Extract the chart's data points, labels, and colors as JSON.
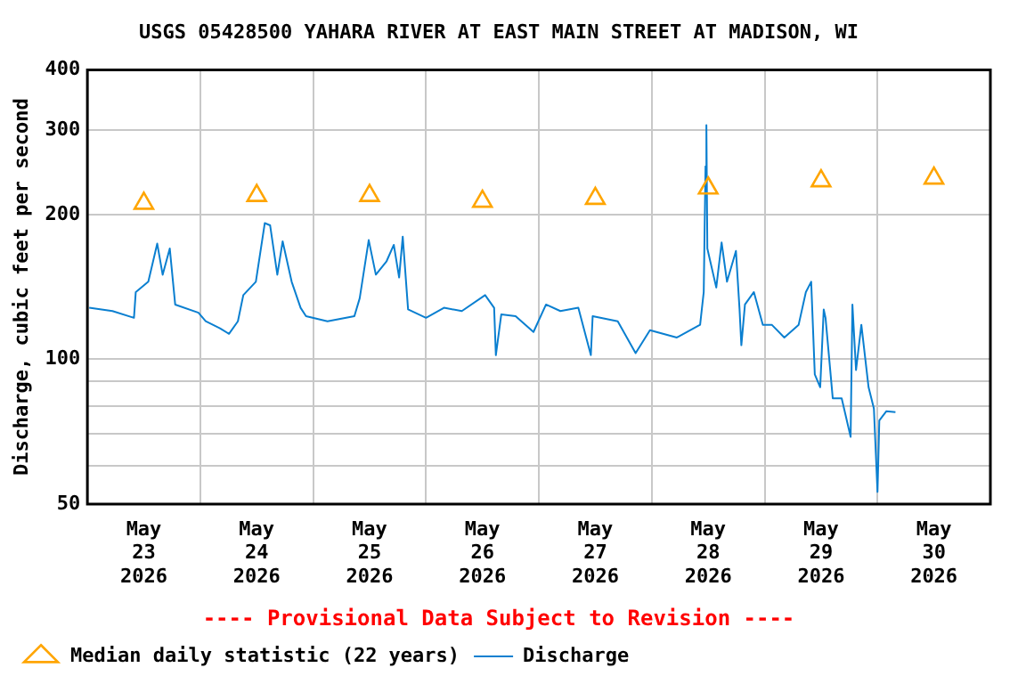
{
  "chart_data": {
    "type": "line",
    "title": "USGS 05428500 YAHARA RIVER AT EAST MAIN STREET AT MADISON, WI",
    "ylabel": "Discharge, cubic feet per second",
    "annotations": [
      "---- Provisional Data Subject to Revision ----"
    ],
    "log": "y",
    "grid": true,
    "legend": "bottom",
    "xlim": [
      "2026-05-23T00:00",
      "2026-05-31T00:00"
    ],
    "xticks": [
      {
        "value": "2026-05-23T00:00",
        "label": null
      },
      {
        "value": "2026-05-23T12:00",
        "label": "May 23 2026"
      },
      {
        "value": "2026-05-24T00:00",
        "label": null
      },
      {
        "value": "2026-05-24T12:00",
        "label": "May 24 2026"
      },
      {
        "value": "2026-05-25T00:00",
        "label": null
      },
      {
        "value": "2026-05-25T12:00",
        "label": "May 25 2026"
      },
      {
        "value": "2026-05-26T00:00",
        "label": null
      },
      {
        "value": "2026-05-26T12:00",
        "label": "May 26 2026"
      },
      {
        "value": "2026-05-27T00:00",
        "label": null
      },
      {
        "value": "2026-05-27T12:00",
        "label": "May 27 2026"
      },
      {
        "value": "2026-05-28T00:00",
        "label": null
      },
      {
        "value": "2026-05-28T12:00",
        "label": "May 28 2026"
      },
      {
        "value": "2026-05-29T00:00",
        "label": null
      },
      {
        "value": "2026-05-29T12:00",
        "label": "May 29 2026"
      },
      {
        "value": "2026-05-30T00:00",
        "label": null
      },
      {
        "value": "2026-05-30T12:00",
        "label": "May 30 2026"
      },
      {
        "value": "2026-05-31T00:00",
        "label": null
      }
    ],
    "ylim": [
      50,
      400
    ],
    "yticks": [
      50,
      {
        "value": 60,
        "label": null
      },
      {
        "value": 70,
        "label": null
      },
      {
        "value": 80,
        "label": null
      },
      {
        "value": 90,
        "label": null
      },
      100,
      200,
      300,
      400
    ],
    "series": [
      {
        "name": "Median daily statistic (22 years)",
        "type": "scatter",
        "marker": "triangle",
        "color": "#ffa500",
        "x": [
          "2026-05-23T12:00",
          "2026-05-24T12:00",
          "2026-05-25T12:00",
          "2026-05-26T12:00",
          "2026-05-27T12:00",
          "2026-05-28T12:00",
          "2026-05-29T12:00",
          "2026-05-30T12:00"
        ],
        "values": [
          211,
          219,
          219,
          213,
          216,
          227,
          235,
          238
        ]
      },
      {
        "name": "Discharge",
        "line_style": "solid",
        "color": "#0a7fd0",
        "x": [
          "2026-05-23T00:23",
          "2026-05-23T05:20",
          "2026-05-23T09:54",
          "2026-05-23T10:17",
          "2026-05-23T12:57",
          "2026-05-23T14:51",
          "2026-05-23T16:00",
          "2026-05-23T17:31",
          "2026-05-23T18:40",
          "2026-05-23T23:37",
          "2026-05-24T01:09",
          "2026-05-24T04:11",
          "2026-05-24T06:06",
          "2026-05-24T08:00",
          "2026-05-24T09:09",
          "2026-05-24T11:49",
          "2026-05-24T13:43",
          "2026-05-24T14:51",
          "2026-05-24T16:23",
          "2026-05-24T17:31",
          "2026-05-24T19:26",
          "2026-05-24T21:20",
          "2026-05-24T22:29",
          "2026-05-25T03:03",
          "2026-05-25T08:46",
          "2026-05-25T09:54",
          "2026-05-25T11:49",
          "2026-05-25T13:20",
          "2026-05-25T15:37",
          "2026-05-25T17:09",
          "2026-05-25T18:17",
          "2026-05-25T19:03",
          "2026-05-25T20:11",
          "2026-05-26T00:00",
          "2026-05-26T03:49",
          "2026-05-26T07:37",
          "2026-05-26T12:34",
          "2026-05-26T14:29",
          "2026-05-26T14:51",
          "2026-05-26T16:00",
          "2026-05-26T19:03",
          "2026-05-26T22:51",
          "2026-05-27T01:31",
          "2026-05-27T04:34",
          "2026-05-27T08:23",
          "2026-05-27T11:03",
          "2026-05-27T11:26",
          "2026-05-27T16:46",
          "2026-05-27T20:34",
          "2026-05-27T23:37",
          "2026-05-28T05:20",
          "2026-05-28T10:17",
          "2026-05-28T11:03",
          "2026-05-28T11:26",
          "2026-05-28T11:37",
          "2026-05-28T11:49",
          "2026-05-28T13:43",
          "2026-05-28T14:51",
          "2026-05-28T16:00",
          "2026-05-28T17:54",
          "2026-05-28T18:40",
          "2026-05-28T19:03",
          "2026-05-28T19:49",
          "2026-05-28T21:43",
          "2026-05-28T23:37",
          "2026-05-29T01:31",
          "2026-05-29T04:11",
          "2026-05-29T07:14",
          "2026-05-29T08:46",
          "2026-05-29T09:54",
          "2026-05-29T10:40",
          "2026-05-29T11:49",
          "2026-05-29T12:34",
          "2026-05-29T12:57",
          "2026-05-29T14:29",
          "2026-05-29T16:23",
          "2026-05-29T18:17",
          "2026-05-29T18:40",
          "2026-05-29T19:26",
          "2026-05-29T20:34",
          "2026-05-29T22:06",
          "2026-05-29T23:14",
          "2026-05-30T00:00",
          "2026-05-30T00:23",
          "2026-05-30T01:54",
          "2026-05-30T03:49"
        ],
        "values": [
          128,
          126,
          122,
          138,
          145,
          174,
          150,
          170,
          130,
          125,
          120,
          116,
          113,
          120,
          136,
          145,
          192,
          190,
          150,
          176,
          145,
          128,
          123,
          120,
          123,
          134,
          177,
          150,
          160,
          173,
          148,
          180,
          127,
          122,
          128,
          126,
          136,
          128,
          102,
          124,
          123,
          114,
          130,
          126,
          128,
          102,
          123,
          120,
          103,
          115,
          111,
          118,
          138,
          252,
          307,
          170,
          141,
          175,
          145,
          168,
          127,
          107,
          130,
          138,
          118,
          118,
          111,
          118,
          138,
          145,
          93,
          87.5,
          127,
          122,
          83,
          83,
          69,
          130,
          95,
          118,
          87.5,
          79,
          53,
          74.6,
          78,
          77.7
        ]
      }
    ]
  }
}
